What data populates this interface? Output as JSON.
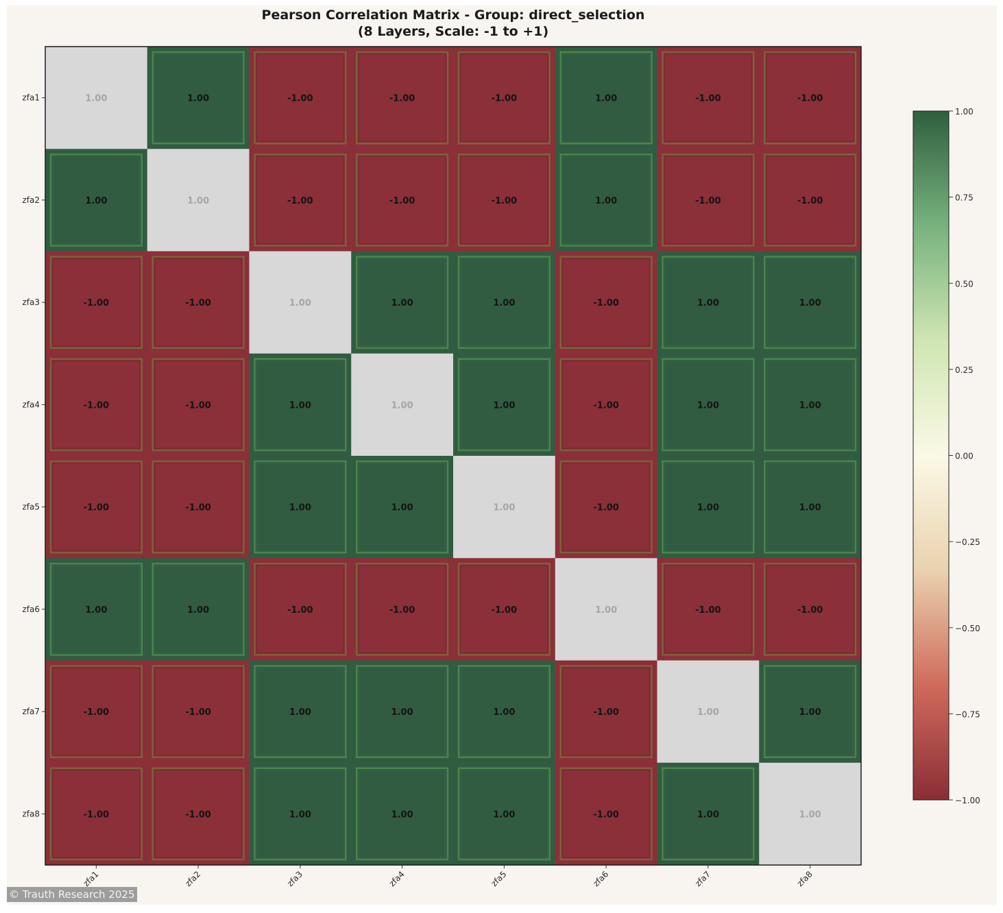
{
  "chart_data": {
    "type": "heatmap",
    "title": "Pearson Correlation Matrix - Group: direct_selection",
    "subtitle": "(8 Layers, Scale: -1 to +1)",
    "row_labels": [
      "zfa1",
      "zfa2",
      "zfa3",
      "zfa4",
      "zfa5",
      "zfa6",
      "zfa7",
      "zfa8"
    ],
    "column_labels": [
      "zfa1",
      "zfa2",
      "zfa3",
      "zfa4",
      "zfa5",
      "zfa6",
      "zfa7",
      "zfa8"
    ],
    "values": [
      [
        1,
        1,
        -1,
        -1,
        -1,
        1,
        -1,
        -1
      ],
      [
        1,
        1,
        -1,
        -1,
        -1,
        1,
        -1,
        -1
      ],
      [
        -1,
        -1,
        1,
        1,
        1,
        -1,
        1,
        1
      ],
      [
        -1,
        -1,
        1,
        1,
        1,
        -1,
        1,
        1
      ],
      [
        -1,
        -1,
        1,
        1,
        1,
        -1,
        1,
        1
      ],
      [
        1,
        1,
        -1,
        -1,
        -1,
        1,
        -1,
        -1
      ],
      [
        -1,
        -1,
        1,
        1,
        1,
        -1,
        1,
        1
      ],
      [
        -1,
        -1,
        1,
        1,
        1,
        -1,
        1,
        1
      ]
    ],
    "value_format": "0.00",
    "diagonal_style": "light gray",
    "colorbar": {
      "range": [
        -1,
        1
      ],
      "ticks": [
        1,
        0.75,
        0.5,
        0.25,
        0,
        -0.25,
        -0.5,
        -0.75,
        -1
      ],
      "tick_labels": [
        "1.00",
        "0.75",
        "0.50",
        "0.25",
        "0.00",
        "−0.25",
        "−0.50",
        "−0.75",
        "−1.00"
      ],
      "colors": [
        "#8b2d36",
        "#cf6b5c",
        "#ead2ae",
        "#fbf9e6",
        "#cfe6b2",
        "#78b27e",
        "#2f5f3e"
      ]
    },
    "colors": {
      "negative": "#8b2f38",
      "positive": "#315c41",
      "diagonal": "#d8d8d8",
      "diagonal_text": "#a6a6a6",
      "cell_text": "#141414",
      "neg_border": "#786a3c",
      "pos_border": "#4d8c50"
    },
    "grid": false
  },
  "watermark": "© Trauth Research 2025"
}
